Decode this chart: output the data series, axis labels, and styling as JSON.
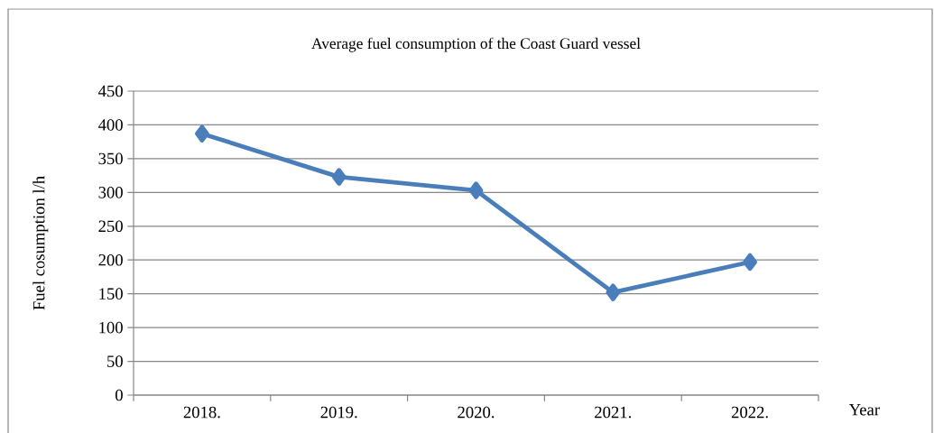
{
  "chart_data": {
    "type": "line",
    "title": "Average fuel consumption of the Coast Guard vessel",
    "xlabel": "Year",
    "ylabel": "Fuel cosumption l/h",
    "categories": [
      "2018.",
      "2019.",
      "2020.",
      "2021.",
      "2022."
    ],
    "series": [
      {
        "color": "#4a7ebb",
        "values": [
          387,
          323,
          303,
          152,
          197
        ]
      }
    ],
    "ylim": [
      0,
      450
    ],
    "yticks": [
      0,
      50,
      100,
      150,
      200,
      250,
      300,
      350,
      400,
      450
    ],
    "grid": "y",
    "marker": "diamond"
  }
}
